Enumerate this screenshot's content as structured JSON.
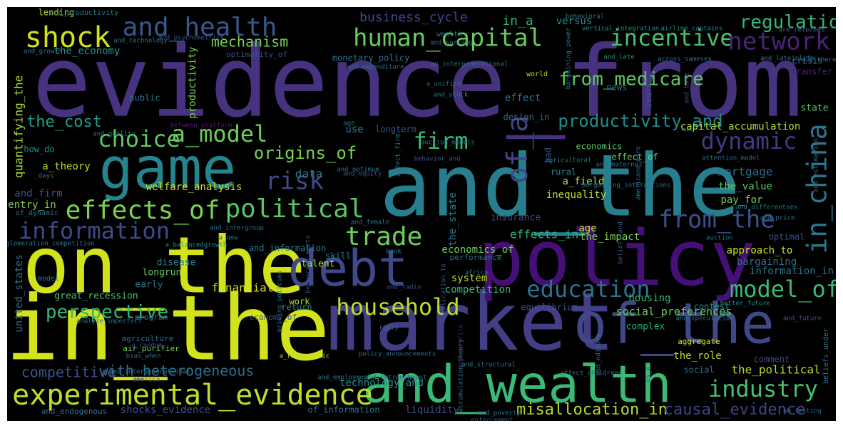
{
  "words": [
    {
      "text": "evidence_from",
      "color": "#46327e"
    },
    {
      "text": "and_the",
      "color": "#277f8e"
    },
    {
      "text": "in_the",
      "color": "#d2e21b"
    },
    {
      "text": "on_the",
      "color": "#d2e21b"
    },
    {
      "text": "market",
      "color": "#433e85"
    },
    {
      "text": "policy",
      "color": "#440f76"
    },
    {
      "text": "and_wealth",
      "color": "#3aba76"
    },
    {
      "text": "game",
      "color": "#25848e"
    },
    {
      "text": "of_the",
      "color": "#3f4889"
    },
    {
      "text": "debt",
      "color": "#3e4a89"
    },
    {
      "text": "experimental_evidence",
      "color": "#bddf26"
    },
    {
      "text": "and_health",
      "color": "#38588c"
    },
    {
      "text": "human_capital",
      "color": "#65cb5e"
    },
    {
      "text": "effects_of",
      "color": "#7ad151"
    },
    {
      "text": "political",
      "color": "#56c667"
    },
    {
      "text": "shock",
      "color": "#d2e21b"
    },
    {
      "text": "choice",
      "color": "#5ec962"
    },
    {
      "text": "a_model",
      "color": "#6ece58"
    },
    {
      "text": "firm",
      "color": "#3aba76"
    },
    {
      "text": "risk",
      "color": "#3e4989"
    },
    {
      "text": "information",
      "color": "#3e4a89"
    },
    {
      "text": "trade",
      "color": "#6ece58"
    },
    {
      "text": "household",
      "color": "#bddf26"
    },
    {
      "text": "incentive",
      "color": "#48c16e"
    },
    {
      "text": "network",
      "color": "#482475"
    },
    {
      "text": "regulation",
      "color": "#35b779"
    },
    {
      "text": "dynamic",
      "color": "#443983"
    },
    {
      "text": "from_the",
      "color": "#3b518b"
    },
    {
      "text": "in_china",
      "color": "#2a768e"
    },
    {
      "text": "education",
      "color": "#2c728e"
    },
    {
      "text": "model_of",
      "color": "#3aba76"
    },
    {
      "text": "industry",
      "color": "#48c16e"
    },
    {
      "text": "of_a",
      "color": "#414487"
    },
    {
      "text": "productivity_and",
      "color": "#228d8d"
    },
    {
      "text": "from_medicare",
      "color": "#5ec962"
    },
    {
      "text": "origins_of",
      "color": "#7ad151"
    },
    {
      "text": "perspective",
      "color": "#35b779"
    },
    {
      "text": "with_heterogeneous",
      "color": "#2e6f8e"
    },
    {
      "text": "competitive",
      "color": "#3b528b"
    },
    {
      "text": "the_cost",
      "color": "#1e9c89"
    },
    {
      "text": "misallocation_in",
      "color": "#b5de2b"
    },
    {
      "text": "causal_evidence",
      "color": "#414487"
    },
    {
      "text": "mechanism",
      "color": "#7ad151"
    },
    {
      "text": "business_cycle",
      "color": "#404688"
    },
    {
      "text": "in_a",
      "color": "#2db27d"
    },
    {
      "text": "versus",
      "color": "#1f988b"
    },
    {
      "text": "shocks_evidence",
      "color": "#3b528b"
    },
    {
      "text": "of_information",
      "color": "#2c728e"
    },
    {
      "text": "liquidity",
      "color": "#3e4989"
    },
    {
      "text": "data",
      "color": "#26828e"
    },
    {
      "text": "welfare_analysis",
      "color": "#d2e21b"
    },
    {
      "text": "quantifying_the",
      "color": "#addc30"
    },
    {
      "text": "and_firm",
      "color": "#38588c"
    },
    {
      "text": "entry_in",
      "color": "#7ad151"
    },
    {
      "text": "of_dynamic",
      "color": "#2c728e"
    },
    {
      "text": "the_economy",
      "color": "#21918c"
    },
    {
      "text": "united_states",
      "color": "#2c728e"
    },
    {
      "text": "great_recession",
      "color": "#48c16e"
    },
    {
      "text": "a_theory",
      "color": "#b5de2b"
    },
    {
      "text": "how_do",
      "color": "#21918c"
    },
    {
      "text": "skill",
      "color": "#2a788e"
    },
    {
      "text": "and_information",
      "color": "#26828e"
    },
    {
      "text": "age",
      "color": "#bddf26"
    },
    {
      "text": "mortgage",
      "color": "#2c728e"
    },
    {
      "text": "the_value",
      "color": "#5ec962"
    },
    {
      "text": "pay_for",
      "color": "#6ece58"
    },
    {
      "text": "the_impact",
      "color": "#7ad151"
    },
    {
      "text": "optimal",
      "color": "#3b528b"
    },
    {
      "text": "approach_to",
      "color": "#d2e21b"
    },
    {
      "text": "bargaining",
      "color": "#2e6f8e"
    },
    {
      "text": "information_in",
      "color": "#2a788e"
    },
    {
      "text": "social_preferences",
      "color": "#65cb5e"
    },
    {
      "text": "housing",
      "color": "#35b779"
    },
    {
      "text": "contest",
      "color": "#21918c"
    },
    {
      "text": "complex",
      "color": "#22a884"
    },
    {
      "text": "financial",
      "color": "#d2e21b"
    },
    {
      "text": "work",
      "color": "#b5de2b"
    },
    {
      "text": "return",
      "color": "#21918c"
    },
    {
      "text": "economy_of",
      "color": "#3b528b"
    },
    {
      "text": "system",
      "color": "#bddf26"
    },
    {
      "text": "competition",
      "color": "#35b779"
    },
    {
      "text": "equilibrium",
      "color": "#3b528b"
    },
    {
      "text": "performance",
      "color": "#2c728e"
    },
    {
      "text": "economics_of",
      "color": "#6ece58"
    },
    {
      "text": "effects_in",
      "color": "#2db27d"
    },
    {
      "text": "insurance",
      "color": "#404688"
    },
    {
      "text": "the_state",
      "color": "#2a788e"
    },
    {
      "text": "inequality",
      "color": "#bddf26"
    },
    {
      "text": "a_field",
      "color": "#b5de2b"
    },
    {
      "text": "rural",
      "color": "#21918c"
    },
    {
      "text": "effect_of",
      "color": "#6ece58"
    },
    {
      "text": "capital_accumulation",
      "color": "#b5de2b"
    },
    {
      "text": "economics",
      "color": "#5ec962"
    },
    {
      "text": "design_in",
      "color": "#2c728e"
    },
    {
      "text": "use",
      "color": "#2a788e"
    },
    {
      "text": "longterm",
      "color": "#3b528b"
    },
    {
      "text": "state",
      "color": "#5ec962"
    },
    {
      "text": "the_political",
      "color": "#b5de2b"
    },
    {
      "text": "comment",
      "color": "#3e4989"
    },
    {
      "text": "the_role",
      "color": "#bddf26"
    },
    {
      "text": "social",
      "color": "#2e6f8e"
    },
    {
      "text": "aggregate",
      "color": "#d2e21b"
    },
    {
      "text": "technology_and",
      "color": "#21918c"
    },
    {
      "text": "talent",
      "color": "#addc30"
    },
    {
      "text": "disease",
      "color": "#26828e"
    },
    {
      "text": "longrun",
      "color": "#5ec962"
    },
    {
      "text": "early",
      "color": "#2c728e"
    },
    {
      "text": "program",
      "color": "#2e6f8e"
    },
    {
      "text": "model",
      "color": "#2c728e"
    },
    {
      "text": "productivity",
      "color": "#7ad151"
    },
    {
      "text": "public",
      "color": "#2c728e"
    },
    {
      "text": "monetary_policy",
      "color": "#2e6f8e"
    },
    {
      "text": "effect",
      "color": "#2a788e"
    },
    {
      "text": "news",
      "color": "#2c728e"
    },
    {
      "text": "search",
      "color": "#3b528b"
    },
    {
      "text": "crisis",
      "color": "#2c728e"
    },
    {
      "text": "transfer",
      "color": "#481f70"
    },
    {
      "text": "wealth",
      "color": "#2c728e"
    },
    {
      "text": "world",
      "color": "#bddf26"
    },
    {
      "text": "bad",
      "color": "#3b528b"
    },
    {
      "text": "agriculture",
      "color": "#2c728e"
    },
    {
      "text": "air_purifier",
      "color": "#6ece58"
    },
    {
      "text": "lending",
      "color": "#b5de2b"
    },
    {
      "text": "and_productivity",
      "color": "#2a788e"
    },
    {
      "text": "optimality_of",
      "color": "#3b528b"
    },
    {
      "text": "and_technology",
      "color": "#2a788e"
    },
    {
      "text": "and_psychometrics",
      "color": "#3b528b"
    },
    {
      "text": "and_growth",
      "color": "#2a788e"
    },
    {
      "text": "and_expenditure",
      "color": "#2c728e"
    },
    {
      "text": "an_intergenerational",
      "color": "#2a788e"
    },
    {
      "text": "behavioral",
      "color": "#2c728e"
    },
    {
      "text": "vertical_integration",
      "color": "#21918c"
    },
    {
      "text": "airline_captains",
      "color": "#21918c"
    },
    {
      "text": "are_referees",
      "color": "#2e6f8e"
    },
    {
      "text": "and_late",
      "color": "#21918c"
    },
    {
      "text": "and_lateinlife",
      "color": "#2e6f8e"
    },
    {
      "text": "across_samesex",
      "color": "#2a788e"
    },
    {
      "text": "all_there",
      "color": "#2c728e"
    },
    {
      "text": "bargaining_power",
      "color": "#2a788e"
    },
    {
      "text": "and_hate",
      "color": "#3b528b"
    },
    {
      "text": "and_sorting",
      "color": "#2c728e"
    },
    {
      "text": "a_unified",
      "color": "#2c728e"
    },
    {
      "text": "and_stock",
      "color": "#2a788e"
    },
    {
      "text": "age_",
      "color": "#2e6f8e"
    },
    {
      "text": "and_optimum",
      "color": "#2c728e"
    },
    {
      "text": "affect_firm",
      "color": "#2a788e"
    },
    {
      "text": "behavior_and",
      "color": "#3b528b"
    },
    {
      "text": "agricultural",
      "color": "#2a788e"
    },
    {
      "text": "and_equity",
      "color": "#3b528b"
    },
    {
      "text": "and_maternal",
      "color": "#2c728e"
    },
    {
      "text": "auction_models",
      "color": "#2c728e"
    },
    {
      "text": "between_platform",
      "color": "#481f70"
    },
    {
      "text": "and_quality",
      "color": "#2a788e"
    },
    {
      "text": "_days",
      "color": "#2c728e"
    },
    {
      "text": "americans_more",
      "color": "#2a788e"
    },
    {
      "text": "attention_model",
      "color": "#2c728e"
    },
    {
      "text": "and_estimation",
      "color": "#2e6f8e"
    },
    {
      "text": "bargaining_interactions",
      "color": "#2c728e"
    },
    {
      "text": "and_differentsex",
      "color": "#2a788e"
    },
    {
      "text": "and_price",
      "color": "#2c728e"
    },
    {
      "text": "and_female",
      "color": "#2c728e"
    },
    {
      "text": "and_intergroup",
      "color": "#2c728e"
    },
    {
      "text": "a_new",
      "color": "#2c728e"
    },
    {
      "text": "auction",
      "color": "#2c728e"
    },
    {
      "text": "agglomeration_competition",
      "color": "#2c728e"
    },
    {
      "text": "a_balancedgrowth",
      "color": "#21918c"
    },
    {
      "text": "bank",
      "color": "#2c728e"
    },
    {
      "text": "and_radio",
      "color": "#3b528b"
    },
    {
      "text": "africa",
      "color": "#2c728e"
    },
    {
      "text": "application_to",
      "color": "#3b528b"
    },
    {
      "text": "beliefs_and",
      "color": "#3b528b"
    },
    {
      "text": "benporath_meets",
      "color": "#3b528b"
    },
    {
      "text": "pricing_policies",
      "color": "#2c728e"
    },
    {
      "text": "reply",
      "color": "#2e6f8e"
    },
    {
      "text": "analyze_imperfect",
      "color": "#2e6f8e"
    },
    {
      "text": "and_speculation",
      "color": "#2c728e"
    },
    {
      "text": "and_future",
      "color": "#3b528b"
    },
    {
      "text": "better_future",
      "color": "#21918c"
    },
    {
      "text": "beliefs_under",
      "color": "#2c728e"
    },
    {
      "text": "a_random",
      "color": "#3b528b"
    },
    {
      "text": "policy_announcements",
      "color": "#2c728e"
    },
    {
      "text": "age_profile",
      "color": "#481f70"
    },
    {
      "text": "bias_when",
      "color": "#2e6f8e"
    },
    {
      "text": "and_intergenerational",
      "color": "#2c728e"
    },
    {
      "text": "a_riskcentric",
      "color": "#b5de2b"
    },
    {
      "text": "and_retrenchment",
      "color": "#2c728e"
    },
    {
      "text": "and_structural",
      "color": "#2c728e"
    },
    {
      "text": "accumulation_theory",
      "color": "#2c728e"
    },
    {
      "text": "affect_childrens",
      "color": "#2a788e"
    },
    {
      "text": "and_editors",
      "color": "#2c728e"
    },
    {
      "text": "as_a",
      "color": "#2e6f8e"
    },
    {
      "text": "america_",
      "color": "#3b528b"
    },
    {
      "text": "and_employment",
      "color": "#2c728e"
    },
    {
      "text": "and_endogenous",
      "color": "#2c728e"
    },
    {
      "text": "and_poverty",
      "color": "#2c728e"
    },
    {
      "text": "enforcement",
      "color": "#3b528b"
    },
    {
      "text": "ab_testing",
      "color": "#2c728e"
    },
    {
      "text": "and_child",
      "color": "#3b528b"
    },
    {
      "text": "and_voting",
      "color": "#2c728e"
    }
  ]
}
